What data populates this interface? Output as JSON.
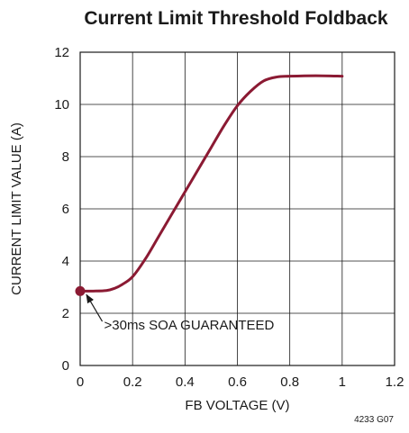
{
  "chart_data": {
    "type": "line",
    "title": "Current Limit Threshold Foldback",
    "xlabel": "FB VOLTAGE (V)",
    "ylabel": "CURRENT LIMIT VALUE (A)",
    "xlim": [
      0,
      1.2
    ],
    "ylim": [
      0,
      12
    ],
    "x_ticks": [
      0,
      0.2,
      0.4,
      0.6,
      0.8,
      1,
      1.2
    ],
    "x_tick_labels": [
      "0",
      "0.2",
      "0.4",
      "0.6",
      "0.8",
      "1",
      "1.2"
    ],
    "y_ticks": [
      0,
      2,
      4,
      6,
      8,
      10,
      12
    ],
    "y_tick_labels": [
      "0",
      "2",
      "4",
      "6",
      "8",
      "10",
      "12"
    ],
    "grid": true,
    "series_color": "#8b1a33",
    "series": [
      {
        "x": [
          0,
          0.05,
          0.1,
          0.13,
          0.16,
          0.2,
          0.25,
          0.3,
          0.35,
          0.4,
          0.45,
          0.5,
          0.55,
          0.6,
          0.65,
          0.7,
          0.75,
          0.8,
          0.9,
          1.0
        ],
        "y": [
          2.85,
          2.85,
          2.87,
          2.95,
          3.1,
          3.4,
          4.1,
          4.95,
          5.8,
          6.65,
          7.5,
          8.35,
          9.2,
          9.95,
          10.5,
          10.9,
          11.05,
          11.08,
          11.1,
          11.08
        ]
      }
    ],
    "marker": {
      "x": 0,
      "y": 2.85
    },
    "annotation": {
      "text": ">30ms SOA GUARANTEED",
      "x": 0.16,
      "y": 1.55,
      "arrow_to": [
        0,
        2.85
      ]
    },
    "figure_id": "4233 G07"
  }
}
